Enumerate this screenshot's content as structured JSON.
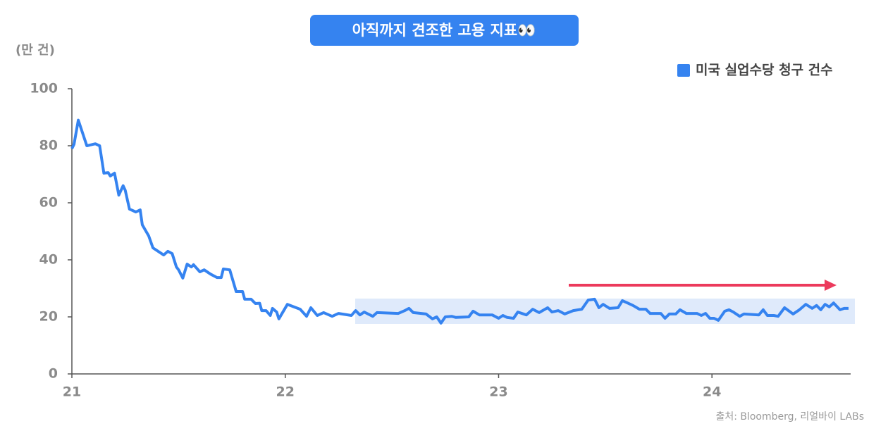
{
  "chart_data": {
    "type": "line",
    "title": "아직까지 견조한 고용 지표👀",
    "y_label": "(만 건)",
    "source": "출처: Bloomberg, 리얼바이 LABs",
    "xlim": [
      21,
      24.65
    ],
    "xticks": [
      21,
      22,
      23,
      24
    ],
    "ylim": [
      0,
      100
    ],
    "yticks": [
      0,
      20,
      40,
      60,
      80,
      100
    ],
    "grid": false,
    "legend": "upper right",
    "x": [
      21.0,
      21.01,
      21.03,
      21.07,
      21.11,
      21.13,
      21.15,
      21.17,
      21.18,
      21.2,
      21.22,
      21.24,
      21.25,
      21.27,
      21.3,
      21.32,
      21.33,
      21.36,
      21.38,
      21.43,
      21.45,
      21.47,
      21.49,
      21.5,
      21.52,
      21.54,
      21.56,
      21.57,
      21.6,
      21.62,
      21.65,
      21.68,
      21.7,
      21.71,
      21.74,
      21.77,
      21.8,
      21.81,
      21.84,
      21.86,
      21.88,
      21.89,
      21.91,
      21.93,
      21.94,
      21.96,
      21.97,
      22.01,
      22.07,
      22.1,
      22.12,
      22.15,
      22.18,
      22.22,
      22.25,
      22.31,
      22.33,
      22.35,
      22.37,
      22.41,
      22.43,
      22.53,
      22.56,
      22.58,
      22.6,
      22.66,
      22.69,
      22.71,
      22.73,
      22.75,
      22.78,
      22.8,
      22.86,
      22.88,
      22.91,
      22.97,
      23.0,
      23.02,
      23.04,
      23.07,
      23.09,
      23.13,
      23.16,
      23.19,
      23.23,
      23.25,
      23.28,
      23.31,
      23.35,
      23.39,
      23.42,
      23.45,
      23.47,
      23.49,
      23.52,
      23.56,
      23.58,
      23.63,
      23.66,
      23.69,
      23.71,
      23.76,
      23.78,
      23.8,
      23.83,
      23.85,
      23.88,
      23.93,
      23.95,
      23.97,
      23.99,
      24.01,
      24.03,
      24.06,
      24.08,
      24.1,
      24.13,
      24.15,
      24.22,
      24.24,
      24.26,
      24.29,
      24.31,
      24.34,
      24.38,
      24.41,
      24.44,
      24.47,
      24.49,
      24.51,
      24.53,
      24.55,
      24.57,
      24.6,
      24.62,
      24.64
    ],
    "series": [
      {
        "name": "미국 실업수당 청구 건수",
        "color": "#3583f0",
        "values": [
          79,
          80.5,
          89,
          80,
          80.7,
          80,
          70.4,
          70.6,
          69.4,
          70.4,
          62.7,
          66,
          64.4,
          57.8,
          56.8,
          57.5,
          52.3,
          48.4,
          44.2,
          41.7,
          43,
          42.2,
          37.5,
          36.5,
          33.6,
          38.5,
          37.5,
          38.3,
          35.8,
          36.5,
          35,
          33.8,
          33.8,
          36.8,
          36.5,
          28.9,
          28.9,
          26.2,
          26.2,
          24.7,
          24.8,
          22.2,
          22.2,
          20.5,
          23,
          21.7,
          19.3,
          24.4,
          22.7,
          20.2,
          23.2,
          20.5,
          21.5,
          20.2,
          21.2,
          20.5,
          22.2,
          20.7,
          21.7,
          20.2,
          21.5,
          21.2,
          22.2,
          23,
          21.5,
          21,
          19.3,
          20,
          17.8,
          20,
          20.2,
          19.8,
          20,
          22,
          20.7,
          20.7,
          19.5,
          20.5,
          19.8,
          19.5,
          21.7,
          20.7,
          22.7,
          21.5,
          23.2,
          21.7,
          22.2,
          21,
          22.2,
          22.7,
          25.9,
          26.2,
          23.2,
          24.4,
          23,
          23.2,
          25.7,
          24,
          22.7,
          22.7,
          21.2,
          21.2,
          19.5,
          21,
          21,
          22.5,
          21.2,
          21.2,
          20.5,
          21.2,
          19.5,
          19.5,
          18.8,
          22,
          22.5,
          21.7,
          20.2,
          21,
          20.7,
          22.5,
          20.5,
          20.5,
          20.2,
          23.2,
          21,
          22.5,
          24.4,
          23,
          24,
          22.5,
          24.4,
          23.5,
          24.9,
          22.5,
          23,
          23
        ]
      }
    ]
  }
}
